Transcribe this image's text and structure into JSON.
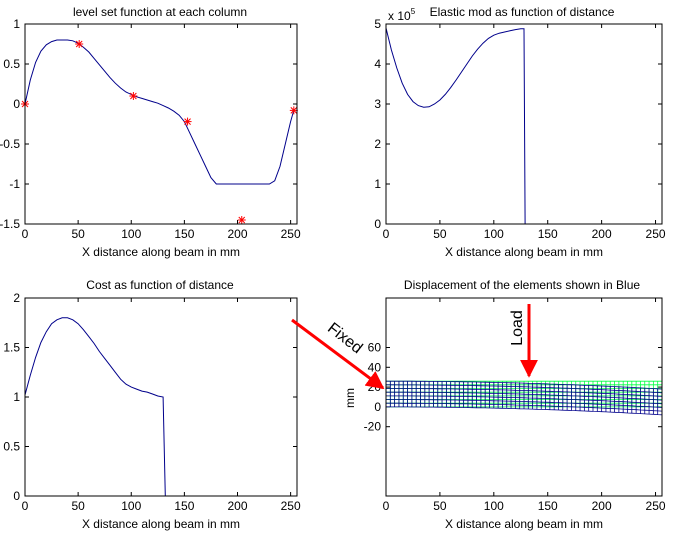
{
  "chart_data": [
    {
      "type": "line",
      "title": "level set function at each column",
      "xlabel": "X distance along beam in mm",
      "ylabel": "",
      "xlim": [
        0,
        256
      ],
      "ylim": [
        -1.5,
        1
      ],
      "xticks": [
        "0",
        "50",
        "100",
        "150",
        "200",
        "250"
      ],
      "yticks": [
        "-1.5",
        "-1",
        "-0.5",
        "0",
        "0.5",
        "1"
      ],
      "series": [
        {
          "color": "#00008b",
          "style": "line",
          "x": [
            0,
            5,
            10,
            15,
            20,
            25,
            30,
            35,
            40,
            45,
            50,
            55,
            60,
            65,
            70,
            75,
            80,
            85,
            90,
            95,
            100,
            105,
            110,
            115,
            120,
            125,
            130,
            135,
            140,
            145,
            150,
            155,
            160,
            165,
            170,
            175,
            180,
            185,
            190,
            195,
            200,
            205,
            210,
            215,
            220,
            225,
            230,
            235,
            240,
            245,
            250,
            253
          ],
          "y": [
            0.0,
            0.3,
            0.52,
            0.66,
            0.74,
            0.78,
            0.8,
            0.8,
            0.8,
            0.79,
            0.76,
            0.71,
            0.65,
            0.57,
            0.49,
            0.41,
            0.33,
            0.26,
            0.2,
            0.15,
            0.12,
            0.09,
            0.07,
            0.05,
            0.03,
            0.01,
            -0.02,
            -0.05,
            -0.09,
            -0.14,
            -0.22,
            -0.36,
            -0.5,
            -0.64,
            -0.78,
            -0.92,
            -1.0,
            -1.0,
            -1.0,
            -1.0,
            -1.0,
            -1.0,
            -1.0,
            -1.0,
            -1.0,
            -1.0,
            -1.0,
            -0.96,
            -0.78,
            -0.5,
            -0.22,
            -0.08
          ]
        },
        {
          "color": "#ff0000",
          "style": "markers",
          "x": [
            0,
            51,
            102,
            153,
            204,
            253
          ],
          "y": [
            0.0,
            0.75,
            0.1,
            -0.22,
            -1.45,
            -0.08
          ]
        }
      ]
    },
    {
      "type": "line",
      "title": "Elastic mod as function of distance",
      "multiplier": "x 10",
      "multiplier_exponent": "5",
      "xlabel": "X distance along beam in mm",
      "ylabel": "",
      "xlim": [
        0,
        256
      ],
      "ylim": [
        0,
        5
      ],
      "xticks": [
        "0",
        "50",
        "100",
        "150",
        "200",
        "250"
      ],
      "yticks": [
        "0",
        "1",
        "2",
        "3",
        "4",
        "5"
      ],
      "series": [
        {
          "color": "#00008b",
          "style": "line",
          "x": [
            0,
            5,
            10,
            15,
            20,
            25,
            30,
            35,
            40,
            45,
            50,
            55,
            60,
            65,
            70,
            75,
            80,
            85,
            90,
            95,
            100,
            105,
            110,
            115,
            120,
            125,
            128,
            129,
            131,
            256
          ],
          "y": [
            4.9,
            4.35,
            3.9,
            3.52,
            3.24,
            3.06,
            2.96,
            2.92,
            2.93,
            3.0,
            3.1,
            3.24,
            3.41,
            3.6,
            3.8,
            4.0,
            4.2,
            4.37,
            4.52,
            4.64,
            4.72,
            4.77,
            4.8,
            4.83,
            4.86,
            4.88,
            4.88,
            0.0,
            0.0,
            0.0
          ]
        }
      ]
    },
    {
      "type": "line",
      "title": "Cost as function of distance",
      "xlabel": "X distance along beam in mm",
      "ylabel": "",
      "xlim": [
        0,
        256
      ],
      "ylim": [
        0,
        2
      ],
      "xticks": [
        "0",
        "50",
        "100",
        "150",
        "200",
        "250"
      ],
      "yticks": [
        "0",
        "0.5",
        "1",
        "1.5",
        "2"
      ],
      "series": [
        {
          "color": "#00008b",
          "style": "line",
          "x": [
            0,
            5,
            10,
            15,
            20,
            25,
            30,
            35,
            40,
            45,
            50,
            55,
            60,
            65,
            70,
            75,
            80,
            85,
            90,
            95,
            100,
            105,
            110,
            115,
            120,
            125,
            130,
            131,
            132
          ],
          "y": [
            1.02,
            1.22,
            1.4,
            1.55,
            1.66,
            1.74,
            1.78,
            1.8,
            1.8,
            1.78,
            1.74,
            1.68,
            1.61,
            1.54,
            1.46,
            1.39,
            1.32,
            1.25,
            1.18,
            1.13,
            1.1,
            1.08,
            1.06,
            1.05,
            1.03,
            1.01,
            1.0,
            0.5,
            0.0
          ]
        }
      ]
    },
    {
      "type": "heatmap",
      "title": "Displacement of the elements shown in Blue",
      "xlabel": "X distance along beam in mm",
      "ylabel": "mm",
      "xlim": [
        0,
        256
      ],
      "ylim": [
        -90,
        110
      ],
      "xticks": [
        "0",
        "50",
        "100",
        "150",
        "200",
        "250"
      ],
      "yticks": [
        "-20",
        "0",
        "20",
        "40",
        "60"
      ],
      "undeformed_color": "#00ff40",
      "deformed_color": "#00008b",
      "mesh": {
        "x_start": 0,
        "x_end": 256,
        "y_bottom": 0,
        "y_top": 26,
        "end_deflection": -8,
        "columns": 64,
        "rows": 7
      },
      "annotations": [
        {
          "text": "Fixed",
          "color": "#ff0000"
        },
        {
          "text": "Load",
          "color": "#ff0000"
        }
      ]
    }
  ]
}
